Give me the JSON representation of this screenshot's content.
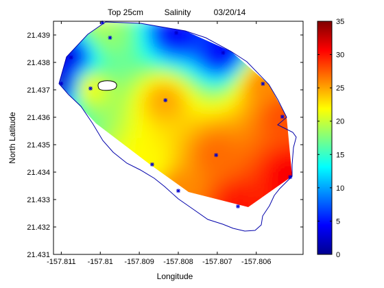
{
  "chart_data": {
    "type": "heatmap",
    "title_parts": [
      "Top 25cm",
      "Salinity",
      "03/20/14"
    ],
    "xlabel": "Longitude",
    "ylabel": "North Latitude",
    "xlim": [
      -157.8112,
      -157.8048
    ],
    "ylim": [
      21.431,
      21.4395
    ],
    "xticks": [
      -157.811,
      -157.81,
      -157.809,
      -157.808,
      -157.807,
      -157.806
    ],
    "xtick_labels": [
      "-157.811",
      "-157.81",
      "-157.809",
      "-157.808",
      "-157.807",
      "-157.806"
    ],
    "yticks": [
      21.431,
      21.432,
      21.433,
      21.434,
      21.435,
      21.436,
      21.437,
      21.438,
      21.439
    ],
    "ytick_labels": [
      "21.431",
      "21.432",
      "21.433",
      "21.434",
      "21.435",
      "21.436",
      "21.437",
      "21.438",
      "21.439"
    ],
    "colorbar": {
      "colormap": "jet",
      "range": [
        0,
        35
      ],
      "ticks": [
        0,
        5,
        10,
        15,
        20,
        25,
        30,
        35
      ],
      "tick_labels": [
        "0",
        "5",
        "10",
        "15",
        "20",
        "25",
        "30",
        "35"
      ]
    },
    "stations": [
      {
        "lon": -157.811,
        "lat": 21.43723,
        "salinity": 2
      },
      {
        "lon": -157.81075,
        "lat": 21.43818,
        "salinity": 3
      },
      {
        "lon": -157.80995,
        "lat": 21.43945,
        "salinity": 20
      },
      {
        "lon": -157.81025,
        "lat": 21.43705,
        "salinity": 22
      },
      {
        "lon": -157.80975,
        "lat": 21.4389,
        "salinity": 18
      },
      {
        "lon": -157.80805,
        "lat": 21.43908,
        "salinity": 4
      },
      {
        "lon": -157.80685,
        "lat": 21.43835,
        "salinity": 4
      },
      {
        "lon": -157.80583,
        "lat": 21.43722,
        "salinity": 26
      },
      {
        "lon": -157.80833,
        "lat": 21.43662,
        "salinity": 25
      },
      {
        "lon": -157.80533,
        "lat": 21.43602,
        "salinity": 28
      },
      {
        "lon": -157.80867,
        "lat": 21.43428,
        "salinity": 22
      },
      {
        "lon": -157.80703,
        "lat": 21.43462,
        "salinity": 27
      },
      {
        "lon": -157.80513,
        "lat": 21.43382,
        "salinity": 31
      },
      {
        "lon": -157.808,
        "lat": 21.43332,
        "salinity": 26
      },
      {
        "lon": -157.80647,
        "lat": 21.43275,
        "salinity": 30
      }
    ],
    "grid": false,
    "marker_color": "#0000cc",
    "shoreline_color": "#0000aa"
  }
}
